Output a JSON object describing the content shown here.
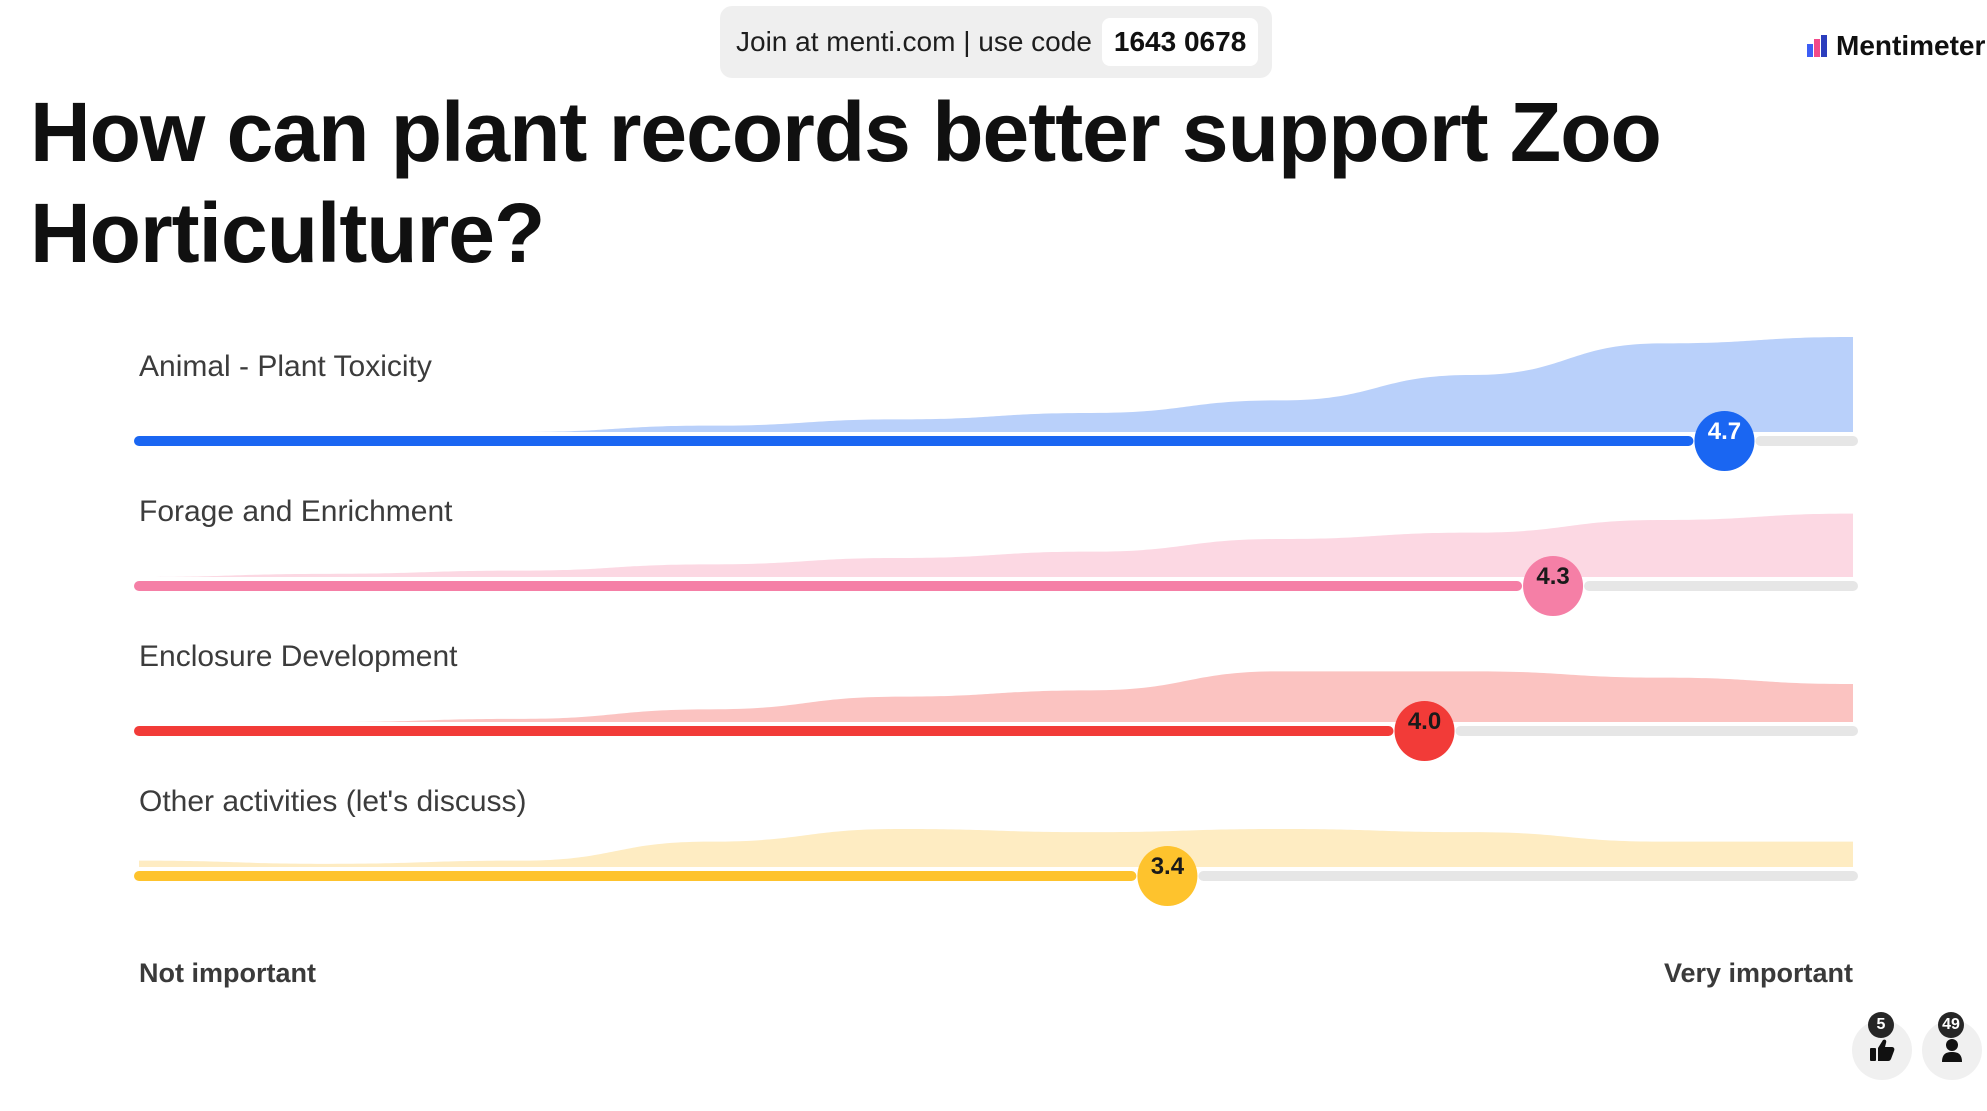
{
  "join": {
    "text": "Join at menti.com | use code",
    "code": "1643 0678"
  },
  "brand": {
    "name": "Mentimeter"
  },
  "question": {
    "title": "How can plant records better support Zoo Horticulture?"
  },
  "chart_data": {
    "type": "scale",
    "min": 1,
    "max": 5,
    "left_label": "Not important",
    "right_label": "Very important",
    "items": [
      {
        "label": "Animal - Plant Toxicity",
        "average": 4.7,
        "average_label": "4.7",
        "color": "#1a66f2",
        "fill_color": "#b9d0fa",
        "track_color": "#e6e6e6",
        "value_text_color": "#ffffff",
        "distribution": [
          0,
          0,
          0,
          1,
          2,
          3,
          5,
          9,
          14,
          15
        ]
      },
      {
        "label": "Forage and Enrichment",
        "average": 4.3,
        "average_label": "4.3",
        "color": "#f57fa6",
        "fill_color": "#fcd8e3",
        "track_color": "#e6e6e6",
        "value_text_color": "#1a1a1a",
        "distribution": [
          0,
          0.5,
          1,
          2,
          3,
          4,
          6,
          7,
          9,
          10
        ]
      },
      {
        "label": "Enclosure Development",
        "average": 4.0,
        "average_label": "4.0",
        "color": "#f23b38",
        "fill_color": "#fbc3c1",
        "track_color": "#e6e6e6",
        "value_text_color": "#1a1a1a",
        "distribution": [
          0,
          0,
          0.5,
          2,
          4,
          5,
          8,
          8,
          7,
          6
        ]
      },
      {
        "label": "Other activities (let's discuss)",
        "average": 3.4,
        "average_label": "3.4",
        "color": "#fec32d",
        "fill_color": "#feecc2",
        "track_color": "#e6e6e6",
        "value_text_color": "#1a1a1a",
        "distribution": [
          1,
          0.5,
          1,
          4,
          6,
          5.5,
          6,
          5.5,
          4,
          4
        ]
      }
    ]
  },
  "counters": {
    "likes": {
      "count": "5",
      "icon": "thumbs-up-icon"
    },
    "participants": {
      "count": "49",
      "icon": "person-icon"
    }
  }
}
